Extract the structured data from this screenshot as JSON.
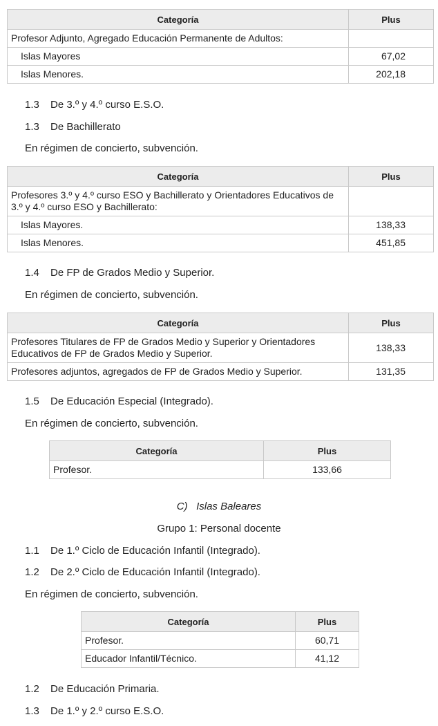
{
  "header": {
    "categoria": "Categoría",
    "plus": "Plus"
  },
  "t1": {
    "rows": [
      {
        "cat": "Profesor Adjunto, Agregado Educación Permanente de Adultos:",
        "plus": ""
      },
      {
        "cat": "Islas Mayores",
        "plus": "67,02"
      },
      {
        "cat": "Islas Menores.",
        "plus": "202,18"
      }
    ]
  },
  "p1": {
    "n": "1.3",
    "t": "De 3.º y 4.º curso E.S.O."
  },
  "p2": {
    "n": "1.3",
    "t": "De Bachillerato"
  },
  "p3": "En régimen de concierto, subvención.",
  "t2": {
    "rows": [
      {
        "cat": "Profesores 3.º y 4.º curso ESO y Bachillerato y Orientadores Educativos de 3.º y 4.º curso ESO y Bachillerato:",
        "plus": ""
      },
      {
        "cat": "Islas Mayores.",
        "plus": "138,33"
      },
      {
        "cat": "Islas Menores.",
        "plus": "451,85"
      }
    ]
  },
  "p4": {
    "n": "1.4",
    "t": "De FP de Grados Medio y Superior."
  },
  "p5": "En régimen de concierto, subvención.",
  "t3": {
    "rows": [
      {
        "cat": "Profesores Titulares de FP de Grados Medio y Superior y Orientadores Educativos de FP de Grados Medio y Superior.",
        "plus": "138,33"
      },
      {
        "cat": "Profesores adjuntos, agregados de FP de Grados Medio y Superior.",
        "plus": "131,35"
      }
    ]
  },
  "p6": {
    "n": "1.5",
    "t": "De Educación Especial (Integrado)."
  },
  "p7": "En régimen de concierto, subvención.",
  "t4": {
    "rows": [
      {
        "cat": "Profesor.",
        "plus": "133,66"
      }
    ]
  },
  "section": {
    "letter": "C)",
    "title": "Islas Baleares"
  },
  "group": "Grupo 1: Personal docente",
  "p8": {
    "n": "1.1",
    "t": "De 1.º Ciclo de Educación Infantil (Integrado)."
  },
  "p9": {
    "n": "1.2",
    "t": "De 2.º Ciclo de Educación Infantil (Integrado)."
  },
  "p10": "En régimen de concierto, subvención.",
  "t5": {
    "rows": [
      {
        "cat": "Profesor.",
        "plus": "60,71"
      },
      {
        "cat": "Educador Infantil/Técnico.",
        "plus": "41,12"
      }
    ]
  },
  "p11": {
    "n": "1.2",
    "t": "De Educación Primaria."
  },
  "p12": {
    "n": "1.3",
    "t": "De 1.º y 2.º curso E.S.O."
  }
}
